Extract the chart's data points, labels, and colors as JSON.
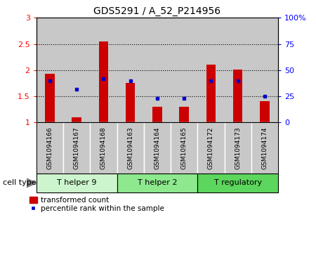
{
  "title": "GDS5291 / A_52_P214956",
  "samples": [
    "GSM1094166",
    "GSM1094167",
    "GSM1094168",
    "GSM1094163",
    "GSM1094164",
    "GSM1094165",
    "GSM1094172",
    "GSM1094173",
    "GSM1094174"
  ],
  "transformed_count": [
    1.93,
    1.1,
    2.55,
    1.75,
    1.3,
    1.3,
    2.1,
    2.01,
    1.4
  ],
  "percentile_rank": [
    40.0,
    32.0,
    42.0,
    40.0,
    23.0,
    23.0,
    40.0,
    40.0,
    25.0
  ],
  "ylim_left": [
    1.0,
    3.0
  ],
  "ylim_right": [
    0,
    100
  ],
  "yticks_left": [
    1.0,
    1.5,
    2.0,
    2.5,
    3.0
  ],
  "yticks_right": [
    0,
    25,
    50,
    75,
    100
  ],
  "ytick_labels_left": [
    "1",
    "1.5",
    "2",
    "2.5",
    "3"
  ],
  "ytick_labels_right": [
    "0",
    "25",
    "50",
    "75",
    "100%"
  ],
  "cell_groups": [
    {
      "label": "T helper 9",
      "start": 0,
      "end": 3,
      "color": "#cdf5cd"
    },
    {
      "label": "T helper 2",
      "start": 3,
      "end": 6,
      "color": "#8ee88e"
    },
    {
      "label": "T regulatory",
      "start": 6,
      "end": 9,
      "color": "#5cd65c"
    }
  ],
  "bar_color": "#cc0000",
  "marker_color": "#0000cc",
  "bg_color_samples": "#c8c8c8",
  "legend_labels": [
    "transformed count",
    "percentile rank within the sample"
  ],
  "cell_type_label": "cell type",
  "bar_bottom": 1.0,
  "dotted_line_values": [
    1.5,
    2.0,
    2.5
  ]
}
